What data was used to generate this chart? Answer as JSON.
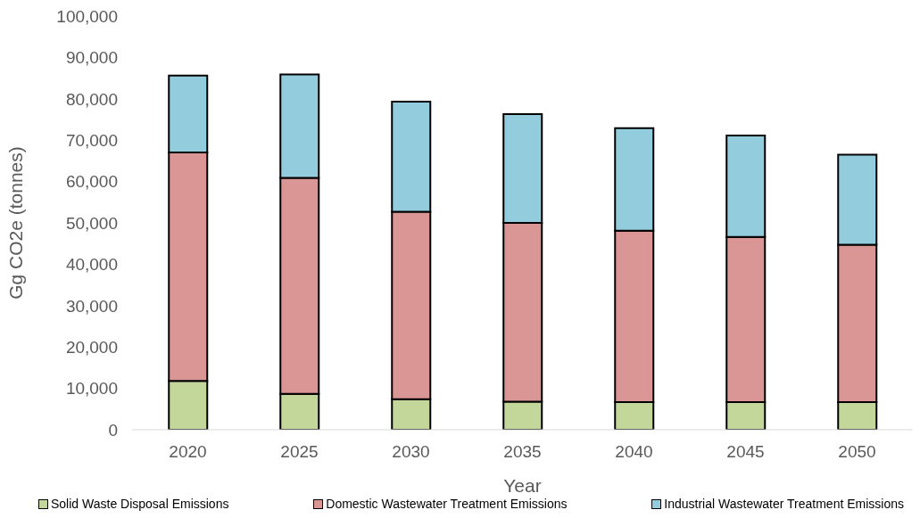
{
  "chart_data": {
    "type": "bar",
    "stacked": true,
    "xlabel": "Year",
    "ylabel": "Gg CO2e (tonnes)",
    "categories": [
      "2020",
      "2025",
      "2030",
      "2035",
      "2040",
      "2045",
      "2050"
    ],
    "series": [
      {
        "name": "Solid Waste Disposal Emissions",
        "color": "#c4d79b",
        "values": [
          11800,
          8700,
          7400,
          6800,
          6700,
          6700,
          6700
        ]
      },
      {
        "name": "Domestic Wastewater Treatment Emissions",
        "color": "#da9694",
        "values": [
          55200,
          52200,
          45300,
          43200,
          41400,
          39900,
          38000
        ]
      },
      {
        "name": "Industrial Wastewater Treatment Emissions",
        "color": "#93cddd",
        "values": [
          18600,
          25000,
          26600,
          26300,
          24800,
          24500,
          21800
        ]
      }
    ],
    "ylim": [
      0,
      100000
    ],
    "yticks": [
      {
        "value": 0,
        "label": "0"
      },
      {
        "value": 10000,
        "label": "10,000"
      },
      {
        "value": 20000,
        "label": "20,000"
      },
      {
        "value": 30000,
        "label": "30,000"
      },
      {
        "value": 40000,
        "label": "40,000"
      },
      {
        "value": 50000,
        "label": "50,000"
      },
      {
        "value": 60000,
        "label": "60,000"
      },
      {
        "value": 70000,
        "label": "70,000"
      },
      {
        "value": 80000,
        "label": "80,000"
      },
      {
        "value": 90000,
        "label": "90,000"
      },
      {
        "value": 100000,
        "label": "100,000"
      }
    ],
    "grid": false,
    "legend": "bottom"
  }
}
